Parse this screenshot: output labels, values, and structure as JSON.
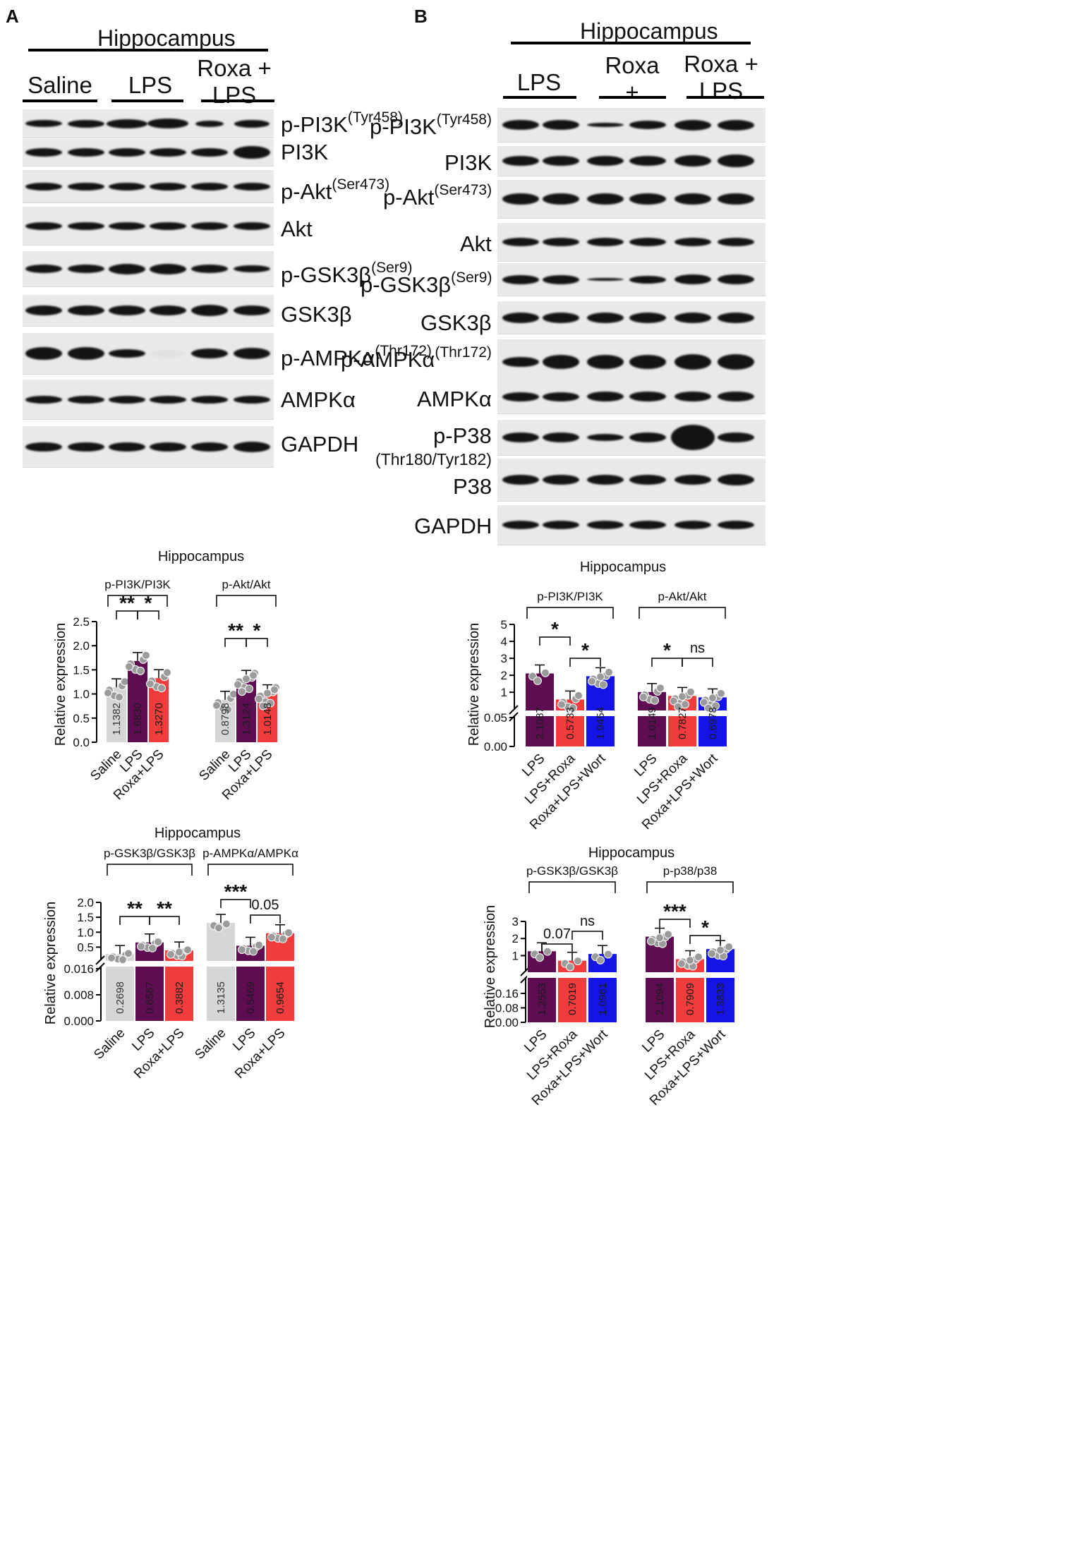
{
  "panelA": {
    "letter": "A",
    "region": "Hippocampus",
    "groups": [
      "Saline",
      "LPS",
      "Roxa +\nLPS"
    ],
    "proteins": [
      {
        "name": "p-PI3K",
        "sup": "(Tyr458)"
      },
      {
        "name": "PI3K",
        "sup": ""
      },
      {
        "name": "p-Akt",
        "sup": "(Ser473)"
      },
      {
        "name": "Akt",
        "sup": ""
      },
      {
        "name": "p-GSK3β",
        "sup": "(Ser9)"
      },
      {
        "name": "GSK3β",
        "sup": ""
      },
      {
        "name": "p-AMPKα",
        "sup": "(Thr172)"
      },
      {
        "name": "AMPKα",
        "sup": ""
      },
      {
        "name": "GAPDH",
        "sup": ""
      }
    ]
  },
  "panelB": {
    "letter": "B",
    "region": "Hippocampus",
    "groups": [
      "LPS",
      "Roxa +\nLPS",
      "Roxa +\nLPS +Wort"
    ],
    "proteins": [
      {
        "name": "p-PI3K",
        "sup": "(Tyr458)",
        "sub": ""
      },
      {
        "name": "PI3K",
        "sup": "",
        "sub": ""
      },
      {
        "name": "p-Akt",
        "sup": "(Ser473)",
        "sub": ""
      },
      {
        "name": "Akt",
        "sup": "",
        "sub": ""
      },
      {
        "name": "p-GSK3β",
        "sup": "(Ser9)",
        "sub": ""
      },
      {
        "name": "GSK3β",
        "sup": "",
        "sub": ""
      },
      {
        "name": "p-AMPKα",
        "sup": "(Thr172)",
        "sub": ""
      },
      {
        "name": "AMPKα",
        "sup": "",
        "sub": ""
      },
      {
        "name": "p-P38",
        "sup": "",
        "sub": "(Thr180/Tyr182)"
      },
      {
        "name": "P38",
        "sup": "",
        "sub": ""
      },
      {
        "name": "GAPDH",
        "sup": "",
        "sub": ""
      }
    ]
  },
  "colors": {
    "saline": "#d6d6d6",
    "lps": "#5e0d52",
    "roxa": "#f03c3c",
    "wort": "#1414e6",
    "dot": "#9b9b9b"
  },
  "chart_data": [
    {
      "type": "bar",
      "title": "Hippocampus",
      "ylabel": "Relative expression",
      "ylim": [
        0,
        2.5
      ],
      "yticks": [
        "0.0",
        "0.5",
        "1.0",
        "1.5",
        "2.0",
        "2.5"
      ],
      "groups": [
        {
          "label": "p-PI3K/PI3K",
          "categories": [
            "Saline",
            "LPS",
            "Roxa+LPS"
          ],
          "values": [
            1.1382,
            1.683,
            1.327
          ],
          "value_labels": [
            "1.1382",
            "1.6830",
            "1.3270"
          ],
          "comparisons": [
            {
              "text": "**"
            },
            {
              "text": "*"
            }
          ]
        },
        {
          "label": "p-Akt/Akt",
          "categories": [
            "Saline",
            "LPS",
            "Roxa+LPS"
          ],
          "values": [
            0.8798,
            1.3124,
            1.0148
          ],
          "value_labels": [
            "0.8798",
            "1.3124",
            "1.0148"
          ],
          "comparisons": [
            {
              "text": "**"
            },
            {
              "text": "*"
            }
          ]
        }
      ]
    },
    {
      "type": "bar",
      "title": "Hippocampus",
      "ylabel": "Relative expression",
      "yticks_upper": [
        "0.5",
        "1.0",
        "1.5",
        "2.0"
      ],
      "yticks_lower": [
        "0.000",
        "0.008",
        "0.016"
      ],
      "axis_break": true,
      "groups": [
        {
          "label": "p-GSK3β/GSK3β",
          "categories": [
            "Saline",
            "LPS",
            "Roxa+LPS"
          ],
          "values": [
            0.2698,
            0.6567,
            0.3882
          ],
          "value_labels": [
            "0.2698",
            "0.6567",
            "0.3882"
          ],
          "comparisons": [
            {
              "text": "**"
            },
            {
              "text": "**"
            }
          ]
        },
        {
          "label": "p-AMPKα/AMPKα",
          "categories": [
            "Saline",
            "LPS",
            "Roxa+LPS"
          ],
          "values": [
            1.3135,
            0.5469,
            0.9654
          ],
          "value_labels": [
            "1.3135",
            "0.5469",
            "0.9654"
          ],
          "comparisons": [
            {
              "text": "***"
            },
            {
              "text": "0.05"
            }
          ]
        }
      ]
    },
    {
      "type": "bar",
      "title": "Hippocampus",
      "ylabel": "Relative expression",
      "yticks_upper": [
        "1",
        "2",
        "3",
        "4",
        "5"
      ],
      "yticks_lower": [
        "0.00",
        "0.05"
      ],
      "axis_break": true,
      "groups": [
        {
          "label": "p-PI3K/PI3K",
          "categories": [
            "LPS",
            "LPS+Roxa",
            "Roxa+LPS+Wort"
          ],
          "values": [
            2.1087,
            0.5733,
            1.9454
          ],
          "value_labels": [
            "2.1087",
            "0.5733",
            "1.9454"
          ],
          "comparisons": [
            {
              "text": "*"
            },
            {
              "text": "*"
            }
          ]
        },
        {
          "label": "p-Akt/Akt",
          "categories": [
            "LPS",
            "LPS+Roxa",
            "Roxa+LPS+Wort"
          ],
          "values": [
            1.0149,
            0.7827,
            0.6978
          ],
          "value_labels": [
            "1.0149",
            "0.7827",
            "0.6978"
          ],
          "comparisons": [
            {
              "text": "*"
            },
            {
              "text": "ns"
            }
          ]
        }
      ]
    },
    {
      "type": "bar",
      "title": "Hippocampus",
      "ylabel": "Relative expression",
      "yticks_upper": [
        "1",
        "2",
        "3"
      ],
      "yticks_lower": [
        "0.00",
        "0.08",
        "0.16"
      ],
      "axis_break": true,
      "groups": [
        {
          "label": "p-GSK3β/GSK3β",
          "categories": [
            "LPS",
            "LPS+Roxa",
            "Roxa+LPS+Wort"
          ],
          "values": [
            1.2553,
            0.7019,
            1.0961
          ],
          "value_labels": [
            "1.2553",
            "0.7019",
            "1.0961"
          ],
          "comparisons": [
            {
              "text": "0.07"
            },
            {
              "text": "ns"
            }
          ]
        },
        {
          "label": "p-p38/p38",
          "categories": [
            "LPS",
            "LPS+Roxa",
            "Roxa+LPS+Wort"
          ],
          "values": [
            2.1094,
            0.7909,
            1.3833
          ],
          "value_labels": [
            "2.1094",
            "0.7909",
            "1.3833"
          ],
          "comparisons": [
            {
              "text": "***"
            },
            {
              "text": "*"
            }
          ]
        }
      ]
    }
  ]
}
